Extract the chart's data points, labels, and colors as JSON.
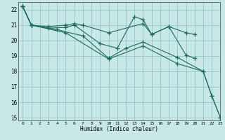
{
  "xlabel": "Humidex (Indice chaleur)",
  "ylabel": "",
  "bg_color": "#c8e8e8",
  "grid_color": "#90c8c8",
  "line_color": "#1a6b5a",
  "xlim": [
    -0.5,
    23
  ],
  "ylim": [
    14.8,
    22.5
  ],
  "xticks": [
    0,
    1,
    2,
    3,
    4,
    5,
    6,
    7,
    8,
    9,
    10,
    11,
    12,
    13,
    14,
    15,
    16,
    17,
    18,
    19,
    20,
    21,
    22,
    23
  ],
  "yticks": [
    15,
    16,
    17,
    18,
    19,
    20,
    21,
    22
  ],
  "lines": [
    {
      "x": [
        0,
        1,
        3,
        5,
        6,
        7,
        10,
        14,
        15,
        17,
        19,
        20
      ],
      "y": [
        22.2,
        21.0,
        20.9,
        21.0,
        21.1,
        21.0,
        20.5,
        21.1,
        20.4,
        20.9,
        20.5,
        20.4
      ]
    },
    {
      "x": [
        0,
        1,
        3,
        5,
        6,
        9,
        11,
        13,
        14,
        15,
        17,
        19,
        20
      ],
      "y": [
        22.2,
        21.0,
        20.8,
        20.85,
        21.0,
        19.8,
        19.5,
        21.55,
        21.35,
        20.4,
        20.9,
        19.05,
        18.85
      ]
    },
    {
      "x": [
        0,
        1,
        4,
        7,
        10,
        12,
        14,
        18,
        21,
        22,
        23
      ],
      "y": [
        22.2,
        21.0,
        20.7,
        20.3,
        18.85,
        19.5,
        19.9,
        18.9,
        18.0,
        16.4,
        15.0
      ]
    },
    {
      "x": [
        0,
        1,
        5,
        10,
        14,
        18,
        21,
        22,
        23
      ],
      "y": [
        22.2,
        21.0,
        20.5,
        18.8,
        19.65,
        18.5,
        18.0,
        16.4,
        15.0
      ]
    }
  ]
}
